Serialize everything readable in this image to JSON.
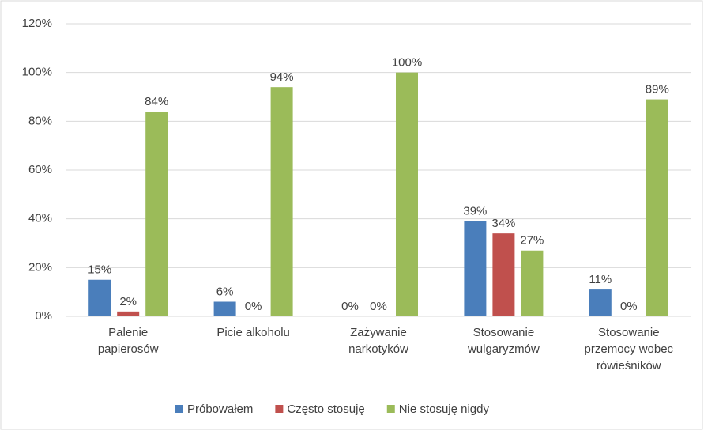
{
  "chart_data": {
    "type": "bar",
    "categories": [
      "Palenie papierosów",
      "Picie alkoholu",
      "Zażywanie narkotyków",
      "Stosowanie wulgaryzmów",
      "Stosowanie przemocy wobec rówieśników"
    ],
    "series": [
      {
        "name": "Próbowałem",
        "color": "#4a7ebb",
        "values": [
          15,
          6,
          0,
          39,
          11
        ],
        "value_labels": [
          "15%",
          "6%",
          "0%",
          "39%",
          "11%"
        ]
      },
      {
        "name": "Często stosuję",
        "color": "#c0504d",
        "values": [
          2,
          0,
          0,
          34,
          0
        ],
        "value_labels": [
          "2%",
          "0%",
          "0%",
          "34%",
          "0%"
        ]
      },
      {
        "name": "Nie stosuję nigdy",
        "color": "#9bbb59",
        "values": [
          84,
          94,
          100,
          27,
          89
        ],
        "value_labels": [
          "84%",
          "94%",
          "100%",
          "27%",
          "89%"
        ]
      }
    ],
    "ylim": [
      0,
      120
    ],
    "yticks": [
      {
        "value": 0,
        "label": "0%"
      },
      {
        "value": 20,
        "label": "20%"
      },
      {
        "value": 40,
        "label": "40%"
      },
      {
        "value": 60,
        "label": "60%"
      },
      {
        "value": 80,
        "label": "80%"
      },
      {
        "value": 100,
        "label": "100%"
      },
      {
        "value": 120,
        "label": "120%"
      }
    ],
    "grid": true,
    "legend": "bottom"
  }
}
